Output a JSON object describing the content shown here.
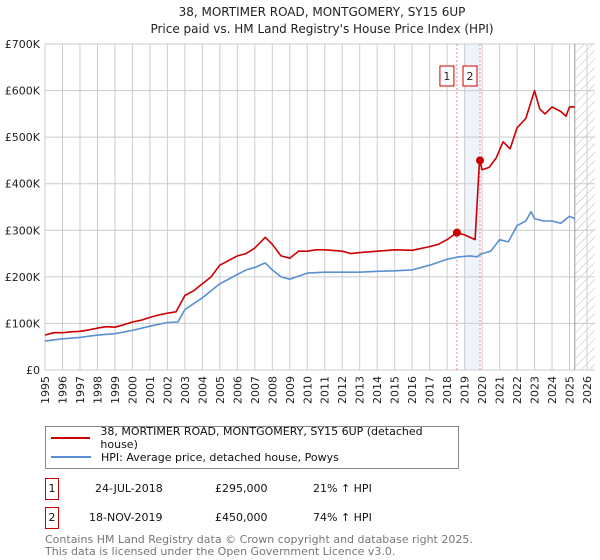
{
  "chart_data": {
    "type": "line",
    "title": "38, MORTIMER ROAD, MONTGOMERY, SY15 6UP",
    "subtitle": "Price paid vs. HM Land Registry's House Price Index (HPI)",
    "xlim": [
      1995,
      2026
    ],
    "ylim": [
      0,
      700000
    ],
    "grid": true,
    "x_ticks": [
      "1995",
      "1996",
      "1997",
      "1998",
      "1999",
      "2000",
      "2001",
      "2002",
      "2003",
      "2004",
      "2005",
      "2006",
      "2007",
      "2008",
      "2009",
      "2010",
      "2011",
      "2012",
      "2013",
      "2014",
      "2015",
      "2016",
      "2017",
      "2018",
      "2019",
      "2020",
      "2021",
      "2022",
      "2023",
      "2024",
      "2025",
      "2026"
    ],
    "y_ticks": [
      {
        "v": 0,
        "label": "£0"
      },
      {
        "v": 100000,
        "label": "£100K"
      },
      {
        "v": 200000,
        "label": "£200K"
      },
      {
        "v": 300000,
        "label": "£300K"
      },
      {
        "v": 400000,
        "label": "£400K"
      },
      {
        "v": 500000,
        "label": "£500K"
      },
      {
        "v": 600000,
        "label": "£600K"
      },
      {
        "v": 700000,
        "label": "£700K"
      }
    ],
    "series": [
      {
        "name": "38, MORTIMER ROAD, MONTGOMERY, SY15 6UP (detached house)",
        "color": "#cc0000",
        "x": [
          1995,
          1995.5,
          1996,
          1996.5,
          1997,
          1997.5,
          1998,
          1998.5,
          1999,
          1999.5,
          2000,
          2000.5,
          2001,
          2001.5,
          2002,
          2002.5,
          2003,
          2003.5,
          2004,
          2004.5,
          2005,
          2005.5,
          2006,
          2006.5,
          2007,
          2007.6,
          2008,
          2008.5,
          2009,
          2009.5,
          2010,
          2010.5,
          2011,
          2012,
          2012.5,
          2013,
          2014,
          2015,
          2016,
          2017,
          2017.5,
          2018,
          2018.56,
          2019,
          2019.6,
          2019.85,
          2020,
          2020.4,
          2020.8,
          2021.2,
          2021.6,
          2022,
          2022.5,
          2023,
          2023.3,
          2023.6,
          2024,
          2024.5,
          2024.8,
          2025,
          2025.3
        ],
        "y": [
          75000,
          80000,
          80000,
          82000,
          83000,
          86000,
          90000,
          93000,
          92000,
          97000,
          103000,
          107000,
          113000,
          118000,
          122000,
          125000,
          160000,
          170000,
          185000,
          200000,
          225000,
          235000,
          245000,
          250000,
          262000,
          285000,
          270000,
          245000,
          240000,
          255000,
          255000,
          258000,
          258000,
          255000,
          250000,
          252000,
          255000,
          258000,
          257000,
          265000,
          270000,
          280000,
          295000,
          290000,
          280000,
          450000,
          430000,
          435000,
          455000,
          490000,
          475000,
          520000,
          540000,
          600000,
          560000,
          550000,
          565000,
          555000,
          545000,
          565000,
          565000
        ]
      },
      {
        "name": "HPI: Average price, detached house, Powys",
        "color": "#5b8fd4",
        "x": [
          1995,
          1996,
          1997,
          1998,
          1999,
          2000,
          2001,
          2002,
          2002.6,
          2003,
          2004,
          2005,
          2006,
          2006.5,
          2007,
          2007.6,
          2008,
          2008.5,
          2009,
          2010,
          2011,
          2012,
          2013,
          2014,
          2015,
          2016,
          2017,
          2018,
          2018.7,
          2019.3,
          2019.7,
          2020,
          2020.5,
          2021,
          2021.5,
          2022,
          2022.5,
          2022.8,
          2023,
          2023.5,
          2024,
          2024.5,
          2025,
          2025.3
        ],
        "y": [
          62000,
          67000,
          70000,
          75000,
          78000,
          85000,
          94000,
          102000,
          103000,
          130000,
          155000,
          185000,
          205000,
          215000,
          220000,
          230000,
          215000,
          200000,
          195000,
          208000,
          210000,
          210000,
          210000,
          212000,
          213000,
          215000,
          225000,
          238000,
          243000,
          245000,
          243000,
          250000,
          255000,
          280000,
          275000,
          310000,
          320000,
          340000,
          325000,
          320000,
          320000,
          315000,
          330000,
          325000
        ]
      }
    ],
    "annotations": [
      {
        "label": "1",
        "x": 2018.56,
        "y": 295000
      },
      {
        "label": "2",
        "x": 2019.88,
        "y": 450000
      }
    ],
    "legend_position": "below"
  },
  "legend": [
    {
      "label": "38, MORTIMER ROAD, MONTGOMERY, SY15 6UP (detached house)",
      "color": "#cc0000"
    },
    {
      "label": "HPI: Average price, detached house, Powys",
      "color": "#5b8fd4"
    }
  ],
  "transactions": [
    {
      "num": "1",
      "date": "24-JUL-2018",
      "price": "£295,000",
      "hpi": "21% ↑ HPI"
    },
    {
      "num": "2",
      "date": "18-NOV-2019",
      "price": "£450,000",
      "hpi": "74% ↑ HPI"
    }
  ],
  "footer": {
    "line1": "Contains HM Land Registry data © Crown copyright and database right 2025.",
    "line2": "This data is licensed under the Open Government Licence v3.0."
  }
}
